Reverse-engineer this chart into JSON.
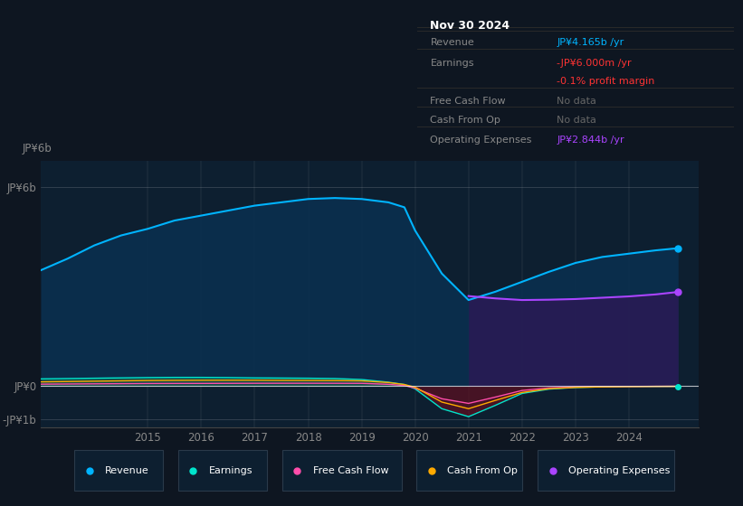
{
  "bg_color": "#0e1621",
  "plot_bg_color": "#0d1f30",
  "title": "Nov 30 2024",
  "years": [
    2013.0,
    2013.5,
    2014.0,
    2014.5,
    2015.0,
    2015.5,
    2016.0,
    2016.5,
    2017.0,
    2017.5,
    2018.0,
    2018.5,
    2019.0,
    2019.5,
    2019.8,
    2020.0,
    2020.5,
    2021.0,
    2021.5,
    2022.0,
    2022.5,
    2023.0,
    2023.5,
    2024.0,
    2024.5,
    2024.92
  ],
  "revenue": [
    3.5,
    3.85,
    4.25,
    4.55,
    4.75,
    5.0,
    5.15,
    5.3,
    5.45,
    5.55,
    5.65,
    5.68,
    5.65,
    5.55,
    5.4,
    4.7,
    3.4,
    2.6,
    2.85,
    3.15,
    3.45,
    3.72,
    3.9,
    4.0,
    4.1,
    4.165
  ],
  "earnings": [
    0.22,
    0.23,
    0.24,
    0.25,
    0.26,
    0.265,
    0.265,
    0.26,
    0.25,
    0.245,
    0.24,
    0.23,
    0.2,
    0.12,
    0.05,
    -0.08,
    -0.68,
    -0.92,
    -0.58,
    -0.22,
    -0.09,
    -0.04,
    -0.02,
    -0.01,
    -0.008,
    -0.006
  ],
  "free_cash_flow": [
    0.06,
    0.065,
    0.07,
    0.075,
    0.08,
    0.082,
    0.083,
    0.085,
    0.087,
    0.088,
    0.088,
    0.087,
    0.085,
    0.055,
    0.02,
    -0.06,
    -0.38,
    -0.52,
    -0.33,
    -0.13,
    -0.055,
    -0.025,
    -0.015,
    -0.01,
    -0.006,
    -0.004
  ],
  "cash_from_op": [
    0.13,
    0.14,
    0.15,
    0.16,
    0.17,
    0.175,
    0.178,
    0.18,
    0.18,
    0.175,
    0.172,
    0.168,
    0.16,
    0.11,
    0.05,
    -0.03,
    -0.48,
    -0.68,
    -0.43,
    -0.19,
    -0.077,
    -0.038,
    -0.022,
    -0.012,
    -0.007,
    -0.005
  ],
  "op_expenses_x": [
    2021.0,
    2021.5,
    2022.0,
    2022.5,
    2023.0,
    2023.5,
    2024.0,
    2024.5,
    2024.92
  ],
  "op_expenses_y": [
    2.72,
    2.65,
    2.6,
    2.61,
    2.63,
    2.67,
    2.71,
    2.77,
    2.844
  ],
  "ylim": [
    -1.25,
    6.8
  ],
  "xlim": [
    2013.0,
    2025.3
  ],
  "xticks": [
    2015,
    2016,
    2017,
    2018,
    2019,
    2020,
    2021,
    2022,
    2023,
    2024
  ],
  "ytick_positions": [
    -1.0,
    0.0,
    6.0
  ],
  "ytick_labels": [
    "-JP¥1b",
    "JP¥0",
    "JP¥6b"
  ],
  "colors": {
    "revenue": "#00b4ff",
    "earnings": "#00e5cc",
    "free_cash_flow": "#ff4daa",
    "cash_from_op": "#ffaa00",
    "op_expenses": "#aa44ff"
  },
  "legend_items": [
    {
      "label": "Revenue",
      "color": "#00b4ff"
    },
    {
      "label": "Earnings",
      "color": "#00e5cc"
    },
    {
      "label": "Free Cash Flow",
      "color": "#ff4daa"
    },
    {
      "label": "Cash From Op",
      "color": "#ffaa00"
    },
    {
      "label": "Operating Expenses",
      "color": "#aa44ff"
    }
  ],
  "info_rows": [
    {
      "label": "Revenue",
      "value": "JP¥4.165b /yr",
      "value_color": "#00b4ff",
      "label_color": "#888888"
    },
    {
      "label": "Earnings",
      "value": "-JP¥6.000m /yr",
      "value_color": "#ff3333",
      "label_color": "#888888"
    },
    {
      "label": "",
      "value": "-0.1% profit margin",
      "value_color": "#ff3333",
      "label_color": "#888888"
    },
    {
      "label": "Free Cash Flow",
      "value": "No data",
      "value_color": "#666666",
      "label_color": "#888888"
    },
    {
      "label": "Cash From Op",
      "value": "No data",
      "value_color": "#666666",
      "label_color": "#888888"
    },
    {
      "label": "Operating Expenses",
      "value": "JP¥2.844b /yr",
      "value_color": "#aa44ff",
      "label_color": "#888888"
    }
  ]
}
